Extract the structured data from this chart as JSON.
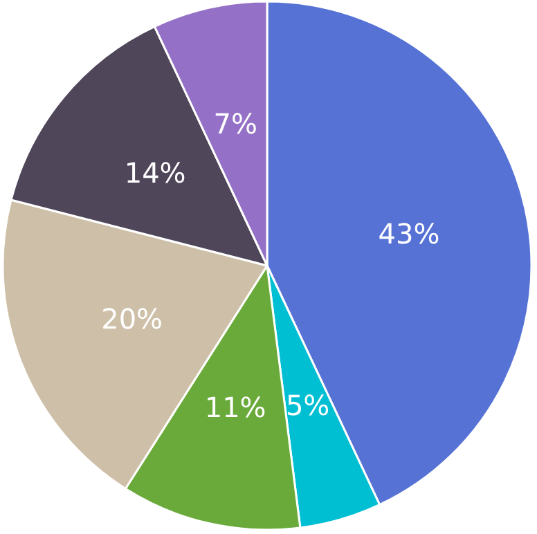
{
  "chart_data": {
    "type": "pie",
    "categories": [
      null,
      null,
      null,
      null,
      null,
      null
    ],
    "values": [
      43,
      5,
      11,
      20,
      14,
      7
    ],
    "colors": [
      "#5672d5",
      "#00bfd3",
      "#6aaa3a",
      "#cec0a8",
      "#50465a",
      "#9471c6"
    ],
    "value_labels": [
      "43%",
      "5%",
      "11%",
      "20%",
      "14%",
      "7%"
    ]
  }
}
